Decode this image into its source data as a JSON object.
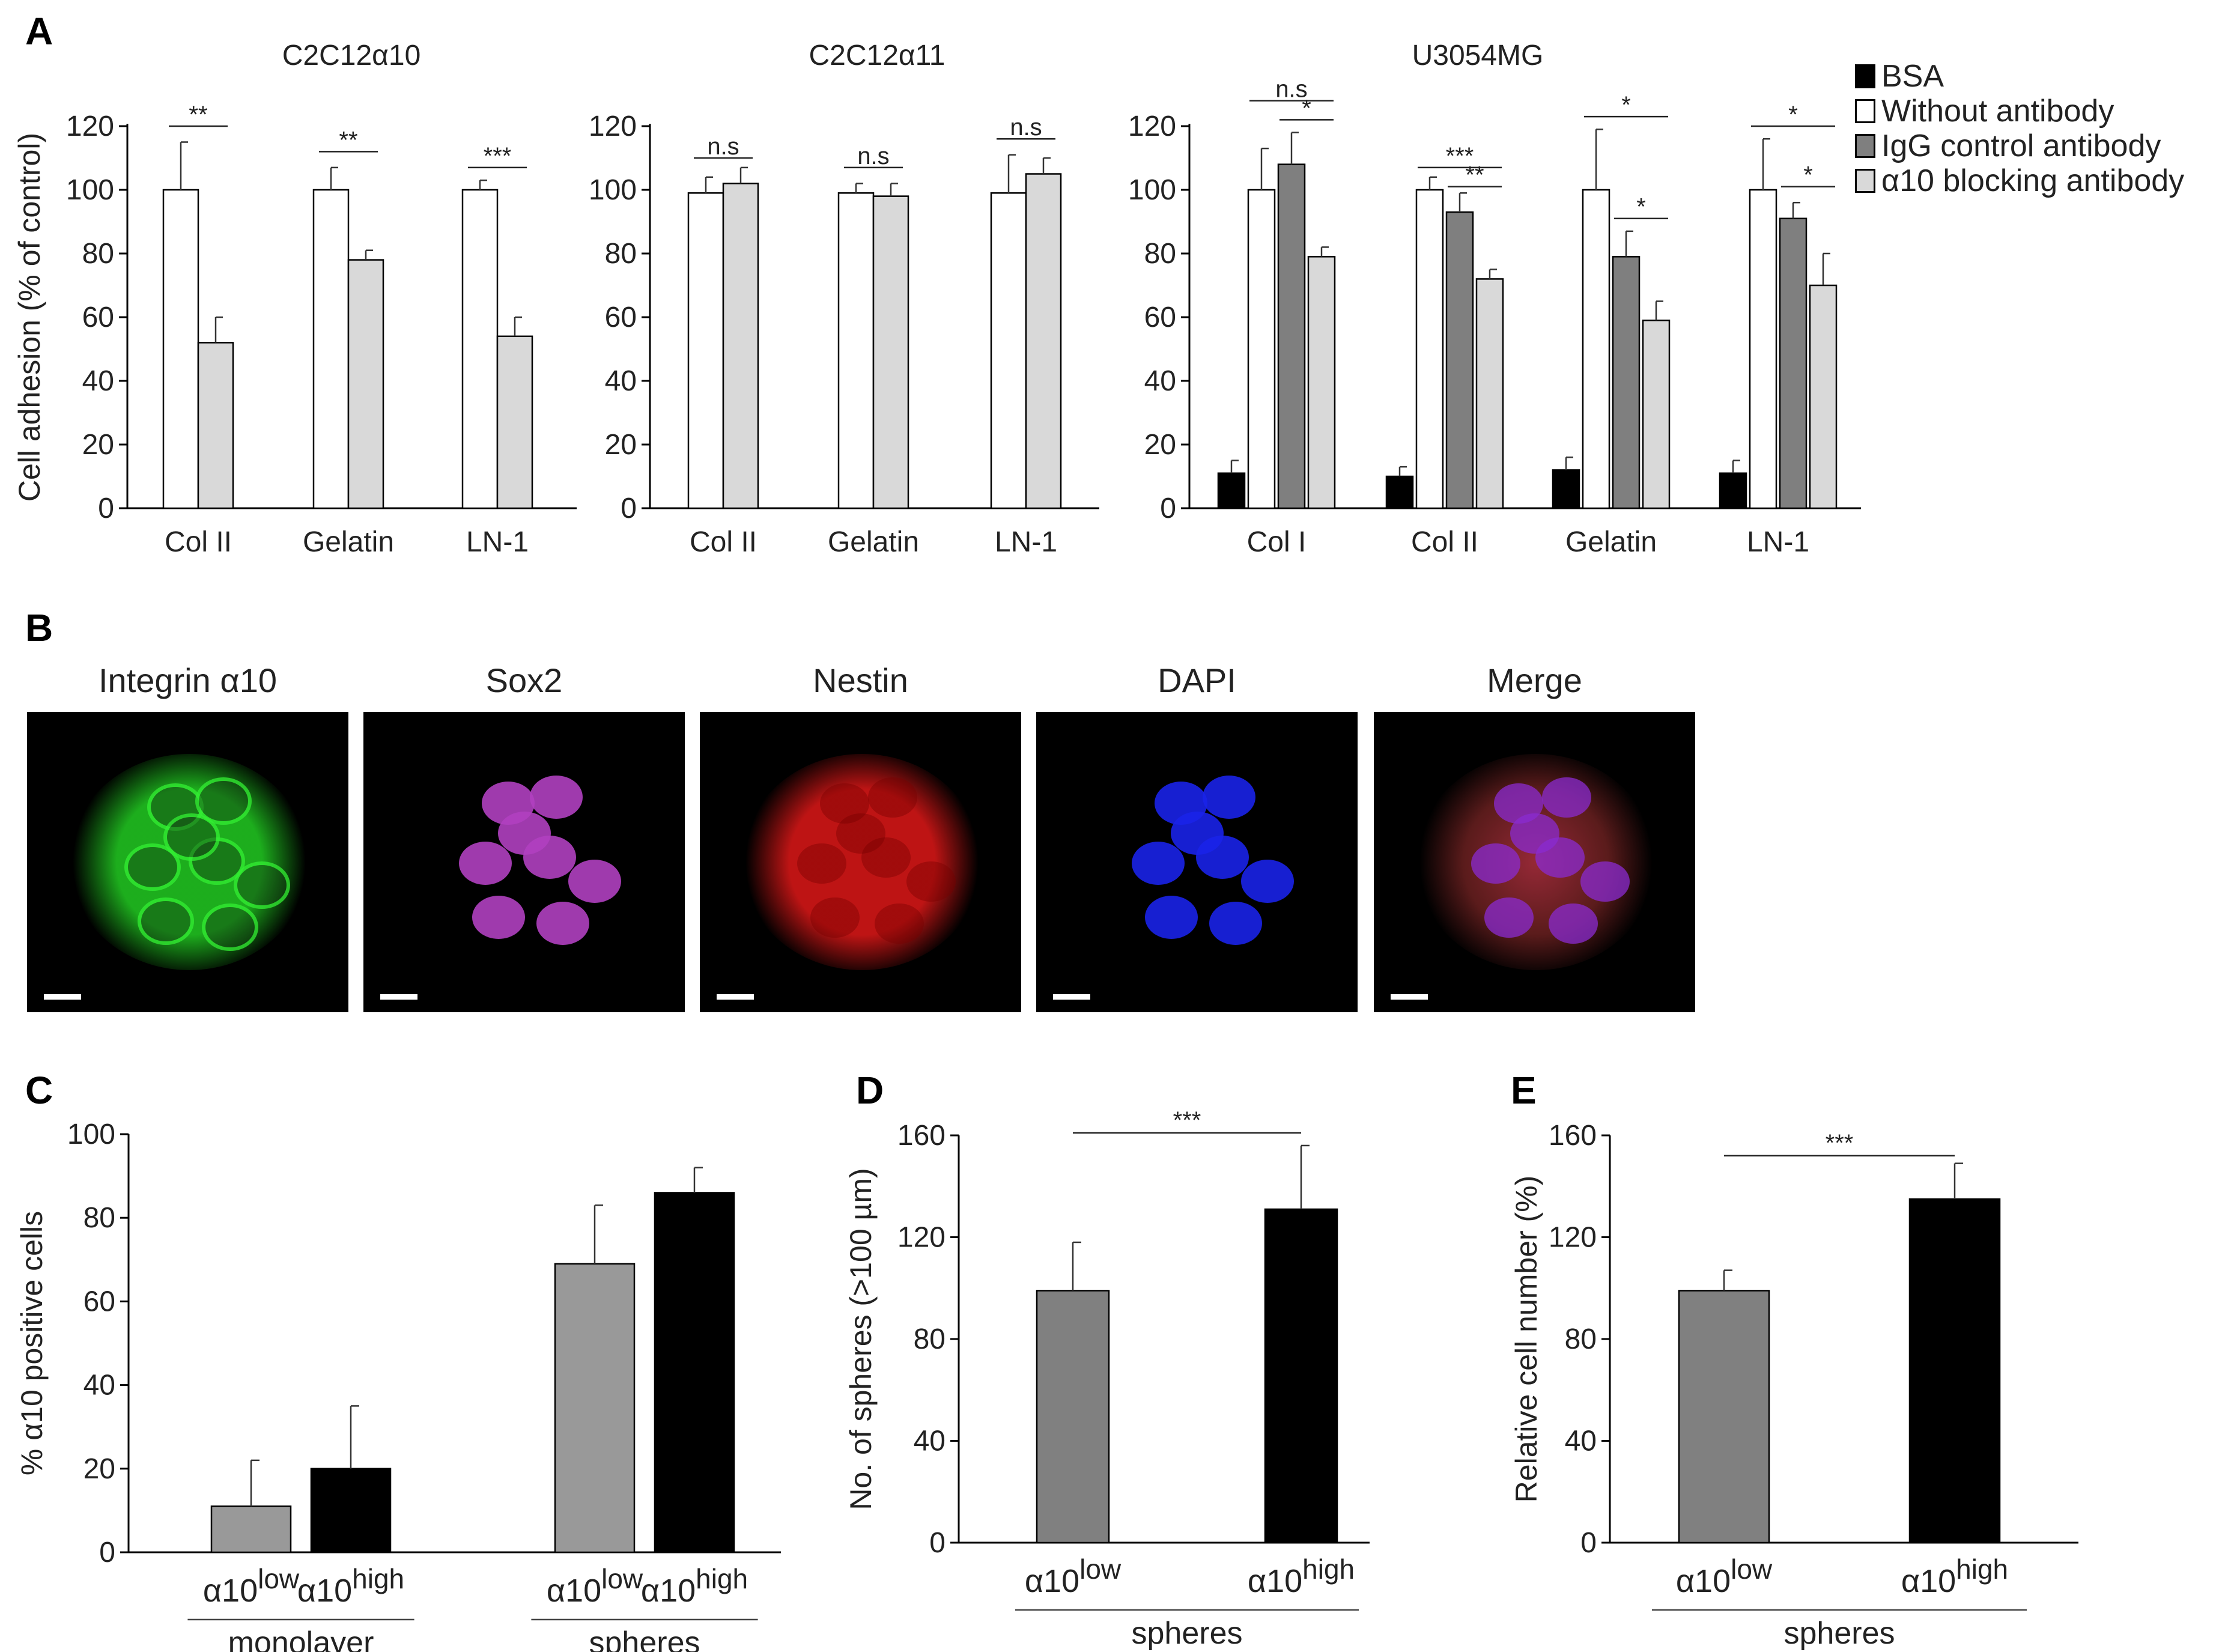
{
  "panels": {
    "A": "A",
    "B": "B",
    "C": "C",
    "D": "D",
    "E": "E"
  },
  "colors": {
    "bsa": "#000000",
    "without": "#ffffff",
    "igg": "#7f7f7f",
    "blocking": "#d9d9d9",
    "low": "#999999",
    "low_de": "#808080",
    "high": "#000000"
  },
  "legend": {
    "items": [
      {
        "label": "BSA",
        "color": "#000000"
      },
      {
        "label": "Without antibody",
        "color": "#ffffff"
      },
      {
        "label": "IgG control antibody",
        "color": "#7f7f7f"
      },
      {
        "label": "α10 blocking antibody",
        "color": "#d9d9d9"
      }
    ]
  },
  "microscopy": {
    "panels": [
      {
        "label": "Integrin α10",
        "stain": "#22cc22"
      },
      {
        "label": "Sox2",
        "stain": "#b040c0"
      },
      {
        "label": "Nestin",
        "stain": "#e01818"
      },
      {
        "label": "DAPI",
        "stain": "#1a22e8"
      },
      {
        "label": "Merge",
        "stain": "#c03070"
      }
    ]
  },
  "chart_data": [
    {
      "id": "A1",
      "type": "bar",
      "title": "C2C12α10",
      "ylabel": "Cell adhesion (% of control)",
      "ylim": [
        0,
        120
      ],
      "yticks": [
        0,
        20,
        40,
        60,
        80,
        100,
        120
      ],
      "categories": [
        "Col II",
        "Gelatin",
        "LN-1"
      ],
      "series": [
        {
          "name": "Without antibody",
          "values": [
            100,
            100,
            100
          ],
          "errors": [
            15,
            7,
            3
          ]
        },
        {
          "name": "α10 blocking antibody",
          "values": [
            52,
            78,
            54
          ],
          "errors": [
            8,
            3,
            6
          ]
        }
      ],
      "significance": [
        {
          "category": 0,
          "from": 0,
          "to": 1,
          "label": "**",
          "y": 120
        },
        {
          "category": 1,
          "from": 0,
          "to": 1,
          "label": "**",
          "y": 112
        },
        {
          "category": 2,
          "from": 0,
          "to": 1,
          "label": "***",
          "y": 107
        }
      ]
    },
    {
      "id": "A2",
      "type": "bar",
      "title": "C2C12α11",
      "ylabel": "",
      "ylim": [
        0,
        120
      ],
      "yticks": [
        0,
        20,
        40,
        60,
        80,
        100,
        120
      ],
      "categories": [
        "Col II",
        "Gelatin",
        "LN-1"
      ],
      "series": [
        {
          "name": "Without antibody",
          "values": [
            99,
            99,
            99
          ],
          "errors": [
            5,
            3,
            12
          ]
        },
        {
          "name": "α10 blocking antibody",
          "values": [
            102,
            98,
            105
          ],
          "errors": [
            5,
            4,
            5
          ]
        }
      ],
      "significance": [
        {
          "category": 0,
          "from": 0,
          "to": 1,
          "label": "n.s",
          "y": 110
        },
        {
          "category": 1,
          "from": 0,
          "to": 1,
          "label": "n.s",
          "y": 107
        },
        {
          "category": 2,
          "from": 0,
          "to": 1,
          "label": "n.s",
          "y": 116
        }
      ]
    },
    {
      "id": "A3",
      "type": "bar",
      "title": "U3054MG",
      "ylabel": "",
      "ylim": [
        0,
        120
      ],
      "yticks": [
        0,
        20,
        40,
        60,
        80,
        100,
        120
      ],
      "categories": [
        "Col I",
        "Col II",
        "Gelatin",
        "LN-1"
      ],
      "series": [
        {
          "name": "BSA",
          "values": [
            11,
            10,
            12,
            11
          ],
          "errors": [
            4,
            3,
            4,
            4
          ]
        },
        {
          "name": "Without antibody",
          "values": [
            100,
            100,
            100,
            100
          ],
          "errors": [
            13,
            4,
            19,
            16
          ]
        },
        {
          "name": "IgG control antibody",
          "values": [
            108,
            93,
            79,
            91
          ],
          "errors": [
            10,
            6,
            8,
            5
          ]
        },
        {
          "name": "α10 blocking antibody",
          "values": [
            79,
            72,
            59,
            70
          ],
          "errors": [
            3,
            3,
            6,
            10
          ]
        }
      ],
      "significance": [
        {
          "category": 0,
          "from": 1,
          "to": 3,
          "label": "n.s",
          "y": 128
        },
        {
          "category": 0,
          "from": 2,
          "to": 3,
          "label": "*",
          "y": 122
        },
        {
          "category": 1,
          "from": 1,
          "to": 3,
          "label": "***",
          "y": 107
        },
        {
          "category": 1,
          "from": 2,
          "to": 3,
          "label": "**",
          "y": 101
        },
        {
          "category": 2,
          "from": 1,
          "to": 3,
          "label": "*",
          "y": 123
        },
        {
          "category": 2,
          "from": 2,
          "to": 3,
          "label": "*",
          "y": 91
        },
        {
          "category": 3,
          "from": 1,
          "to": 3,
          "label": "*",
          "y": 120
        },
        {
          "category": 3,
          "from": 2,
          "to": 3,
          "label": "*",
          "y": 101
        }
      ]
    },
    {
      "id": "C",
      "type": "bar",
      "ylabel": "% α10 positive cells",
      "ylim": [
        0,
        100
      ],
      "yticks": [
        0,
        20,
        40,
        60,
        80,
        100
      ],
      "groups": [
        {
          "label": "monolayer",
          "bars": [
            {
              "label_base": "α10",
              "label_sup": "low",
              "value": 11,
              "error": 11,
              "color": "#999999"
            },
            {
              "label_base": "α10",
              "label_sup": "high",
              "value": 20,
              "error": 15,
              "color": "#000000"
            }
          ]
        },
        {
          "label": "spheres",
          "bars": [
            {
              "label_base": "α10",
              "label_sup": "low",
              "value": 69,
              "error": 14,
              "color": "#999999"
            },
            {
              "label_base": "α10",
              "label_sup": "high",
              "value": 86,
              "error": 6,
              "color": "#000000"
            }
          ]
        }
      ]
    },
    {
      "id": "D",
      "type": "bar",
      "ylabel": "No. of spheres (>100 µm)",
      "ylim": [
        0,
        160
      ],
      "yticks": [
        0,
        40,
        80,
        120,
        160
      ],
      "groups": [
        {
          "label": "spheres",
          "bars": [
            {
              "label_base": "α10",
              "label_sup": "low",
              "value": 99,
              "error": 19,
              "color": "#808080"
            },
            {
              "label_base": "α10",
              "label_sup": "high",
              "value": 131,
              "error": 25,
              "color": "#000000"
            }
          ]
        }
      ],
      "significance": {
        "label": "***",
        "y": 161
      }
    },
    {
      "id": "E",
      "type": "bar",
      "ylabel": "Relative cell number (%)",
      "ylim": [
        0,
        160
      ],
      "yticks": [
        0,
        40,
        80,
        120,
        160
      ],
      "groups": [
        {
          "label": "spheres",
          "bars": [
            {
              "label_base": "α10",
              "label_sup": "low",
              "value": 99,
              "error": 8,
              "color": "#808080"
            },
            {
              "label_base": "α10",
              "label_sup": "high",
              "value": 135,
              "error": 14,
              "color": "#000000"
            }
          ]
        }
      ],
      "significance": {
        "label": "***",
        "y": 152
      }
    }
  ]
}
